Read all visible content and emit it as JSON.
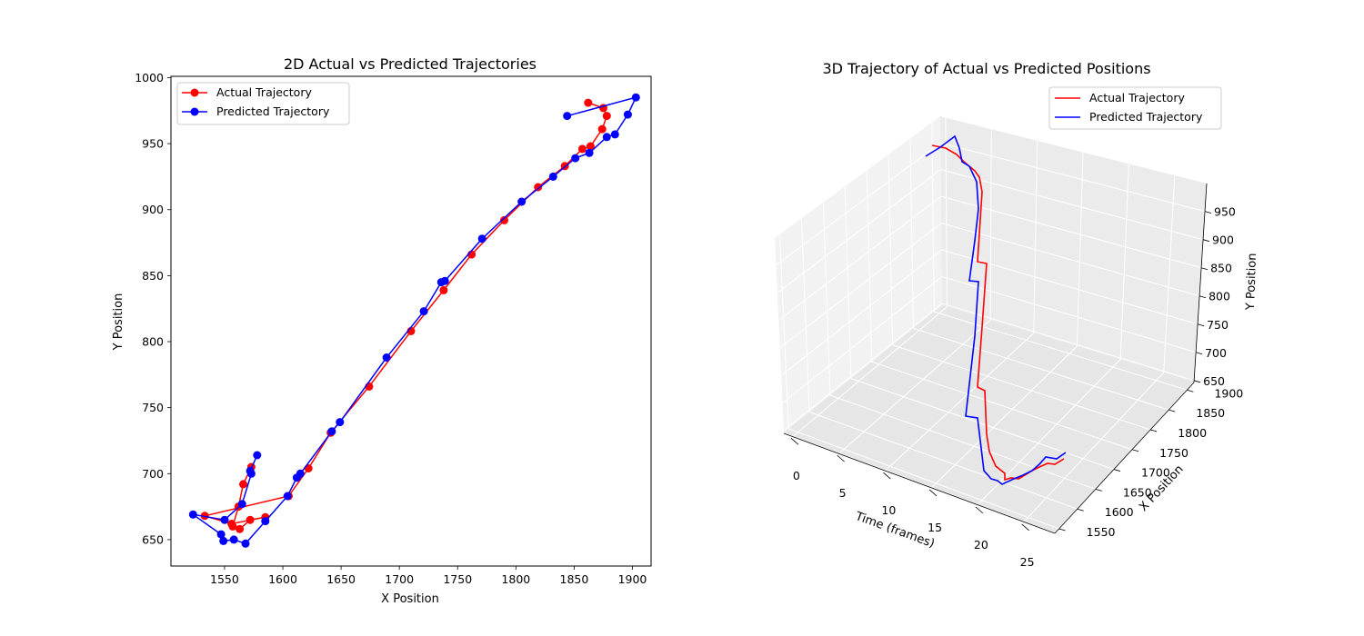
{
  "chart_data": [
    {
      "type": "line",
      "title": "2D Actual vs Predicted Trajectories",
      "xlabel": "X Position",
      "ylabel": "Y Position",
      "xlim": [
        1504,
        1916
      ],
      "ylim": [
        630,
        1001
      ],
      "xticks": [
        "1550",
        "1600",
        "1650",
        "1700",
        "1750",
        "1800",
        "1850",
        "1900"
      ],
      "yticks": [
        "650",
        "700",
        "750",
        "800",
        "850",
        "900",
        "950",
        "1000"
      ],
      "grid": false,
      "legend_position": "top-left",
      "series": [
        {
          "name": "Actual Trajectory",
          "color": "#ff0000",
          "marker": "circle",
          "points": [
            [
              1573,
              705
            ],
            [
              1566,
              692
            ],
            [
              1562,
              675
            ],
            [
              1557,
              660
            ],
            [
              1563,
              658
            ],
            [
              1572,
              665
            ],
            [
              1585,
              667
            ],
            [
              1556,
              662
            ],
            [
              1533,
              668
            ],
            [
              1605,
              683
            ],
            [
              1622,
              704
            ],
            [
              1641,
              731
            ],
            [
              1674,
              766
            ],
            [
              1710,
              808
            ],
            [
              1738,
              839
            ],
            [
              1762,
              866
            ],
            [
              1790,
              892
            ],
            [
              1819,
              917
            ],
            [
              1842,
              933
            ],
            [
              1857,
              946
            ],
            [
              1864,
              948
            ],
            [
              1874,
              961
            ],
            [
              1878,
              971
            ],
            [
              1875,
              977
            ],
            [
              1862,
              981
            ]
          ]
        },
        {
          "name": "Predicted Trajectory",
          "color": "#0000ff",
          "marker": "circle",
          "points": [
            [
              1578,
              714
            ],
            [
              1572,
              702
            ],
            [
              1573,
              700
            ],
            [
              1565,
              677
            ],
            [
              1550,
              665
            ],
            [
              1523,
              669
            ],
            [
              1547,
              654
            ],
            [
              1549,
              649
            ],
            [
              1558,
              650
            ],
            [
              1568,
              647
            ],
            [
              1585,
              664
            ],
            [
              1604,
              683
            ],
            [
              1612,
              697
            ],
            [
              1615,
              700
            ],
            [
              1642,
              732
            ],
            [
              1649,
              739
            ],
            [
              1689,
              788
            ],
            [
              1721,
              823
            ],
            [
              1736,
              845
            ],
            [
              1739,
              846
            ],
            [
              1771,
              878
            ],
            [
              1805,
              906
            ],
            [
              1832,
              925
            ],
            [
              1851,
              939
            ],
            [
              1863,
              943
            ],
            [
              1878,
              955
            ],
            [
              1885,
              957
            ],
            [
              1896,
              972
            ],
            [
              1903,
              985
            ],
            [
              1844,
              971
            ]
          ]
        }
      ]
    },
    {
      "type": "line",
      "subtype": "3d",
      "title": "3D Trajectory of Actual vs Predicted Positions",
      "xlabel": "Time (frames)",
      "ylabel": "X Position",
      "zlabel": "Y Position",
      "xticks": [
        "0",
        "5",
        "10",
        "15",
        "20",
        "25"
      ],
      "yticks": [
        "1550",
        "1600",
        "1650",
        "1700",
        "1750",
        "1800",
        "1850",
        "1900"
      ],
      "zticks": [
        "650",
        "700",
        "750",
        "800",
        "850",
        "900",
        "950"
      ],
      "grid": true,
      "legend_position": "top-right",
      "series": [
        {
          "name": "Actual Trajectory",
          "color": "#ff0000",
          "polyline": [
            [
              1170,
              505
            ],
            [
              1160,
              511
            ],
            [
              1152,
              510
            ],
            [
              1143,
              514
            ],
            [
              1135,
              518
            ],
            [
              1127,
              523
            ],
            [
              1120,
              527
            ],
            [
              1112,
              526
            ],
            [
              1105,
              528
            ],
            [
              1105,
              521
            ],
            [
              1095,
              513
            ],
            [
              1088,
              497
            ],
            [
              1085,
              478
            ],
            [
              1083,
              430
            ],
            [
              1075,
              426
            ],
            [
              1080,
              360
            ],
            [
              1085,
              290
            ],
            [
              1075,
              288
            ],
            [
              1080,
              211
            ],
            [
              1077,
              195
            ],
            [
              1072,
              188
            ],
            [
              1060,
              178
            ],
            [
              1052,
              170
            ],
            [
              1040,
              163
            ],
            [
              1025,
              160
            ]
          ]
        },
        {
          "name": "Predicted Trajectory",
          "color": "#0000ff",
          "polyline": [
            [
              1172,
              498
            ],
            [
              1162,
              505
            ],
            [
              1150,
              503
            ],
            [
              1143,
              511
            ],
            [
              1135,
              518
            ],
            [
              1125,
              523
            ],
            [
              1115,
              527
            ],
            [
              1102,
              533
            ],
            [
              1097,
              529
            ],
            [
              1090,
              527
            ],
            [
              1082,
              518
            ],
            [
              1075,
              460
            ],
            [
              1062,
              458
            ],
            [
              1072,
              370
            ],
            [
              1076,
              310
            ],
            [
              1066,
              309
            ],
            [
              1072,
              265
            ],
            [
              1076,
              230
            ],
            [
              1074,
              200
            ],
            [
              1066,
              183
            ],
            [
              1058,
              178
            ],
            [
              1055,
              163
            ],
            [
              1050,
              150
            ],
            [
              1034,
              162
            ],
            [
              1018,
              172
            ]
          ]
        }
      ]
    }
  ]
}
